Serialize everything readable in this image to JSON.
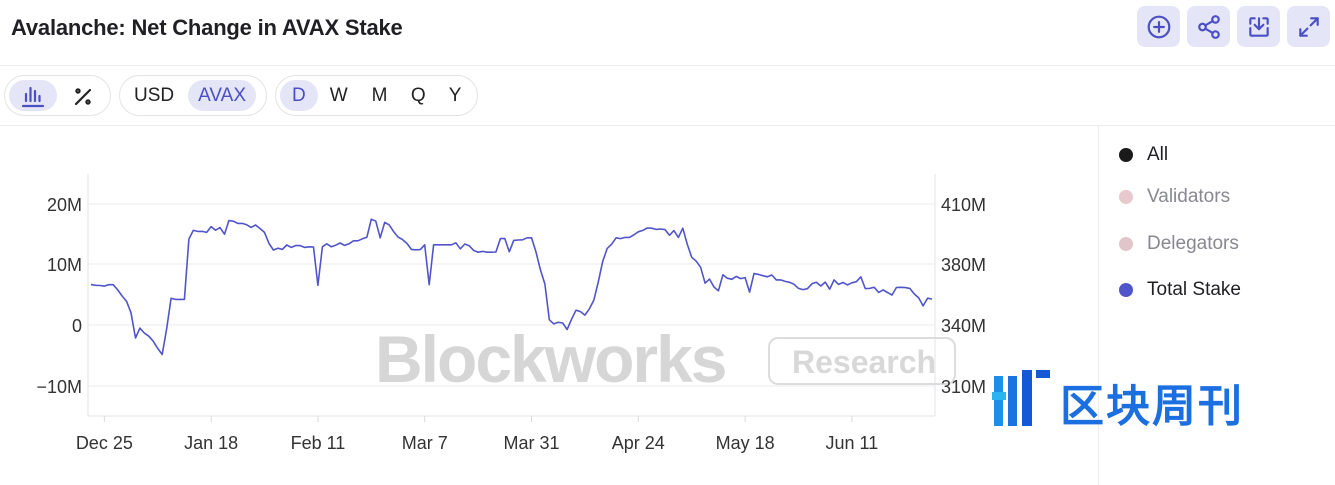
{
  "header": {
    "title": "Avalanche: Net Change in AVAX Stake",
    "actions": [
      {
        "name": "add-icon"
      },
      {
        "name": "share-icon"
      },
      {
        "name": "download-icon"
      },
      {
        "name": "expand-icon"
      }
    ]
  },
  "toolbar": {
    "chart_type": {
      "bar_icon": "bar-chart-icon",
      "percent_icon": "percent-icon",
      "active": "bar"
    },
    "currency": {
      "options": [
        "USD",
        "AVAX"
      ],
      "active": "AVAX"
    },
    "period": {
      "options": [
        "D",
        "W",
        "M",
        "Q",
        "Y"
      ],
      "active": "D"
    }
  },
  "legend": [
    {
      "label": "All",
      "color": "#1a1a1a",
      "muted": false
    },
    {
      "label": "Validators",
      "color": "#e8c9cd",
      "muted": true
    },
    {
      "label": "Delegators",
      "color": "#e0c6cb",
      "muted": true
    },
    {
      "label": "Total Stake",
      "color": "#5055c9",
      "muted": false
    }
  ],
  "watermark": {
    "brand": "Blockworks",
    "tag": "Research",
    "publisher": "区块周刊"
  },
  "chart_data": {
    "type": "line",
    "title": "Avalanche: Net Change in AVAX Stake",
    "series": [
      {
        "name": "Total Stake",
        "color": "#5055c9",
        "axis": "right",
        "values": [
          [
            0,
            366.5
          ],
          [
            1,
            366.0
          ],
          [
            2,
            365.9
          ],
          [
            3,
            365.5
          ],
          [
            4,
            366.4
          ],
          [
            5,
            366.4
          ],
          [
            6,
            363.0
          ],
          [
            7,
            359.0
          ],
          [
            8,
            355.5
          ],
          [
            9,
            348.0
          ],
          [
            10,
            333.6
          ],
          [
            11,
            338.5
          ],
          [
            12,
            336.0
          ],
          [
            13,
            334.5
          ],
          [
            14,
            332.0
          ],
          [
            15,
            328.5
          ],
          [
            16,
            325.5
          ],
          [
            17,
            338.0
          ],
          [
            18,
            357.5
          ],
          [
            19,
            356.8
          ],
          [
            20,
            356.8
          ],
          [
            21,
            356.8
          ],
          [
            22,
            392.5
          ],
          [
            23,
            396.8
          ],
          [
            24,
            396.3
          ],
          [
            25,
            396.3
          ],
          [
            26,
            395.8
          ],
          [
            27,
            398.7
          ],
          [
            28,
            396.9
          ],
          [
            29,
            398.2
          ],
          [
            30,
            394.9
          ],
          [
            31,
            401.7
          ],
          [
            32,
            401.4
          ],
          [
            33,
            400.3
          ],
          [
            34,
            400.3
          ],
          [
            35,
            399.6
          ],
          [
            36,
            398.3
          ],
          [
            37,
            399.5
          ],
          [
            38,
            397.7
          ],
          [
            39,
            395.8
          ],
          [
            40,
            390.3
          ],
          [
            41,
            387.0
          ],
          [
            42,
            387.9
          ],
          [
            43,
            387.3
          ],
          [
            44,
            389.5
          ],
          [
            45,
            388.3
          ],
          [
            46,
            389.2
          ],
          [
            47,
            389.2
          ],
          [
            48,
            388.3
          ],
          [
            49,
            388.6
          ],
          [
            50,
            388.5
          ],
          [
            51,
            366.0
          ],
          [
            52,
            388.6
          ],
          [
            53,
            390.1
          ],
          [
            54,
            388.6
          ],
          [
            55,
            389.4
          ],
          [
            56,
            390.5
          ],
          [
            57,
            389.3
          ],
          [
            58,
            390.1
          ],
          [
            59,
            391.6
          ],
          [
            60,
            391.6
          ],
          [
            61,
            392.6
          ],
          [
            62,
            393.4
          ],
          [
            63,
            402.4
          ],
          [
            64,
            401.4
          ],
          [
            65,
            393.1
          ],
          [
            66,
            400.8
          ],
          [
            67,
            399.6
          ],
          [
            68,
            396.2
          ],
          [
            69,
            393.5
          ],
          [
            70,
            392.2
          ],
          [
            71,
            390.3
          ],
          [
            72,
            387.3
          ],
          [
            73,
            387.1
          ],
          [
            74,
            387.2
          ],
          [
            75,
            389.6
          ],
          [
            76,
            366.4
          ],
          [
            77,
            389.6
          ],
          [
            78,
            389.6
          ],
          [
            79,
            389.6
          ],
          [
            80,
            389.6
          ],
          [
            81,
            389.6
          ],
          [
            82,
            390.6
          ],
          [
            83,
            387.6
          ],
          [
            84,
            390.0
          ],
          [
            85,
            389.1
          ],
          [
            86,
            386.8
          ],
          [
            87,
            385.9
          ],
          [
            88,
            386.3
          ],
          [
            89,
            385.9
          ],
          [
            90,
            385.9
          ],
          [
            91,
            386.0
          ],
          [
            92,
            392.7
          ],
          [
            93,
            392.7
          ],
          [
            94,
            386.1
          ],
          [
            95,
            391.8
          ],
          [
            96,
            392.0
          ],
          [
            97,
            392.1
          ],
          [
            98,
            393.1
          ],
          [
            99,
            393.1
          ],
          [
            100,
            386.0
          ],
          [
            101,
            376.2
          ],
          [
            102,
            366.8
          ],
          [
            103,
            343.5
          ],
          [
            104,
            340.7
          ],
          [
            105,
            341.8
          ],
          [
            106,
            341.3
          ],
          [
            107,
            337.8
          ],
          [
            108,
            343.8
          ],
          [
            109,
            349.7
          ],
          [
            110,
            348.8
          ],
          [
            111,
            346.5
          ],
          [
            112,
            350.6
          ],
          [
            113,
            356.2
          ],
          [
            114,
            368.3
          ],
          [
            115,
            381.3
          ],
          [
            116,
            387.8
          ],
          [
            117,
            389.9
          ],
          [
            118,
            393.1
          ],
          [
            119,
            392.7
          ],
          [
            120,
            393.3
          ],
          [
            121,
            393.3
          ],
          [
            122,
            394.6
          ],
          [
            123,
            396.1
          ],
          [
            124,
            396.8
          ],
          [
            125,
            398.0
          ],
          [
            126,
            397.9
          ],
          [
            127,
            397.3
          ],
          [
            128,
            397.5
          ],
          [
            129,
            397.2
          ],
          [
            130,
            394.4
          ],
          [
            131,
            396.7
          ],
          [
            132,
            393.3
          ],
          [
            133,
            397.9
          ],
          [
            134,
            389.8
          ],
          [
            135,
            383.4
          ],
          [
            136,
            381.4
          ],
          [
            137,
            377.9
          ],
          [
            138,
            367.4
          ],
          [
            139,
            370.1
          ],
          [
            140,
            364.9
          ],
          [
            141,
            362.4
          ],
          [
            142,
            372.9
          ],
          [
            143,
            370.7
          ],
          [
            144,
            370.0
          ],
          [
            145,
            371.9
          ],
          [
            146,
            370.4
          ],
          [
            147,
            371.1
          ],
          [
            148,
            361.6
          ],
          [
            149,
            373.7
          ],
          [
            150,
            373.2
          ],
          [
            151,
            372.3
          ],
          [
            152,
            371.6
          ],
          [
            153,
            372.8
          ],
          [
            154,
            369.6
          ],
          [
            155,
            369.6
          ],
          [
            156,
            368.6
          ],
          [
            157,
            368.0
          ],
          [
            158,
            366.7
          ],
          [
            159,
            364.0
          ],
          [
            160,
            363.2
          ],
          [
            161,
            363.8
          ],
          [
            162,
            367.0
          ],
          [
            163,
            368.0
          ],
          [
            164,
            365.6
          ],
          [
            165,
            368.1
          ],
          [
            166,
            363.5
          ],
          [
            167,
            369.6
          ],
          [
            168,
            366.6
          ],
          [
            169,
            367.9
          ],
          [
            170,
            366.3
          ],
          [
            171,
            367.7
          ],
          [
            172,
            368.4
          ],
          [
            173,
            371.6
          ],
          [
            174,
            363.9
          ],
          [
            175,
            364.0
          ],
          [
            176,
            364.7
          ],
          [
            177,
            361.4
          ],
          [
            178,
            363.0
          ],
          [
            179,
            361.3
          ],
          [
            180,
            359.7
          ],
          [
            181,
            364.6
          ],
          [
            182,
            364.7
          ],
          [
            183,
            364.5
          ],
          [
            184,
            364.0
          ],
          [
            185,
            360.4
          ],
          [
            186,
            357.8
          ],
          [
            187,
            352.5
          ],
          [
            188,
            357.6
          ],
          [
            189,
            357.0
          ]
        ]
      }
    ],
    "x_ticks": [
      {
        "at": 3,
        "label": "Dec 25"
      },
      {
        "at": 27,
        "label": "Jan 18"
      },
      {
        "at": 51,
        "label": "Feb 11"
      },
      {
        "at": 75,
        "label": "Mar 7"
      },
      {
        "at": 99,
        "label": "Mar 31"
      },
      {
        "at": 123,
        "label": "Apr 24"
      },
      {
        "at": 147,
        "label": "May 18"
      },
      {
        "at": 171,
        "label": "Jun 11"
      }
    ],
    "left_axis": {
      "ticks": [
        20,
        10,
        0,
        -10
      ],
      "labels": [
        "20M",
        "10M",
        "0",
        "−10M"
      ],
      "range": [
        -15,
        35
      ]
    },
    "right_axis": {
      "ticks": [
        410,
        380,
        340,
        310
      ],
      "labels": [
        "410M",
        "380M",
        "340M",
        "310M"
      ]
    },
    "grid": true,
    "legend_position": "right"
  }
}
